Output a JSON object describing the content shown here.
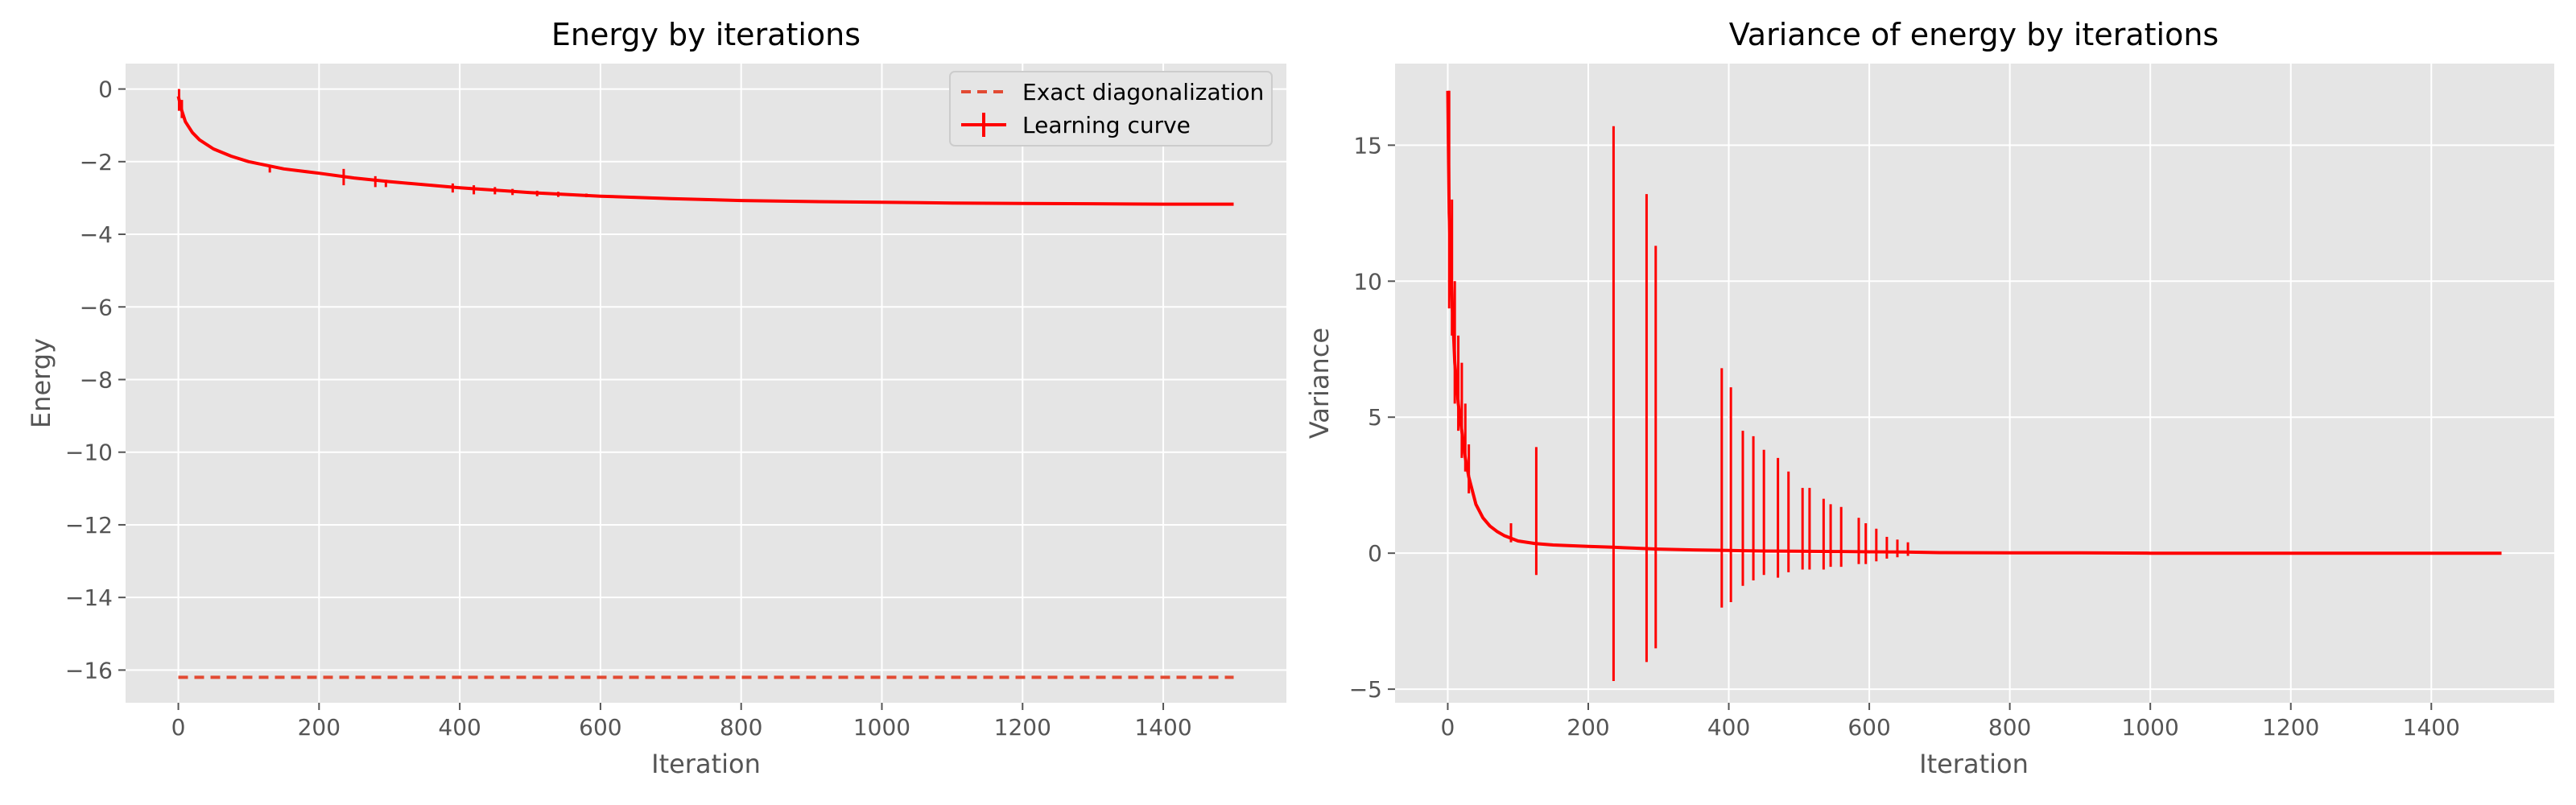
{
  "colors": {
    "plot_background": "#e5e5e5",
    "grid": "#ffffff",
    "learning_curve": "#ff0000",
    "exact_line": "#e24a33",
    "tick_label": "#555555"
  },
  "chart_data": [
    {
      "type": "line",
      "title": "Energy by iterations",
      "xlabel": "Iteration",
      "ylabel": "Energy",
      "xlim": [
        -75,
        1575
      ],
      "ylim": [
        -16.9,
        0.7
      ],
      "xticks": [
        0,
        200,
        400,
        600,
        800,
        1000,
        1200,
        1400
      ],
      "yticks": [
        0,
        -2,
        -4,
        -6,
        -8,
        -10,
        -12,
        -14,
        -16
      ],
      "xtick_labels": [
        "0",
        "200",
        "400",
        "600",
        "800",
        "1000",
        "1200",
        "1400"
      ],
      "ytick_labels": [
        "0",
        "−2",
        "−4",
        "−6",
        "−8",
        "−10",
        "−12",
        "−14",
        "−16"
      ],
      "grid": true,
      "legend": {
        "position": "top-right",
        "entries": [
          "Exact diagonalization",
          "Learning curve"
        ]
      },
      "series": [
        {
          "name": "Exact diagonalization",
          "style": "dashed",
          "x": [
            0,
            1500
          ],
          "y": [
            -16.2,
            -16.2
          ]
        },
        {
          "name": "Learning curve",
          "style": "solid-with-errorbars",
          "x": [
            0,
            5,
            10,
            20,
            30,
            50,
            75,
            100,
            150,
            200,
            250,
            300,
            400,
            500,
            600,
            700,
            800,
            900,
            1000,
            1100,
            1200,
            1300,
            1400,
            1500
          ],
          "y": [
            -0.2,
            -0.6,
            -0.9,
            -1.2,
            -1.4,
            -1.65,
            -1.85,
            -2.0,
            -2.2,
            -2.32,
            -2.45,
            -2.55,
            -2.72,
            -2.85,
            -2.95,
            -3.02,
            -3.07,
            -3.1,
            -3.12,
            -3.14,
            -3.15,
            -3.16,
            -3.17,
            -3.17
          ],
          "errorbars": [
            {
              "x": 1,
              "lo": -0.6,
              "hi": 0.0
            },
            {
              "x": 5,
              "lo": -0.8,
              "hi": -0.3
            },
            {
              "x": 130,
              "lo": -2.3,
              "hi": -2.1
            },
            {
              "x": 235,
              "lo": -2.65,
              "hi": -2.2
            },
            {
              "x": 280,
              "lo": -2.7,
              "hi": -2.4
            },
            {
              "x": 295,
              "lo": -2.7,
              "hi": -2.5
            },
            {
              "x": 390,
              "lo": -2.85,
              "hi": -2.6
            },
            {
              "x": 420,
              "lo": -2.9,
              "hi": -2.65
            },
            {
              "x": 450,
              "lo": -2.9,
              "hi": -2.7
            },
            {
              "x": 475,
              "lo": -2.92,
              "hi": -2.75
            },
            {
              "x": 510,
              "lo": -2.95,
              "hi": -2.8
            },
            {
              "x": 540,
              "lo": -2.97,
              "hi": -2.83
            },
            {
              "x": 580,
              "lo": -2.98,
              "hi": -2.88
            }
          ]
        }
      ]
    },
    {
      "type": "line",
      "title": "Variance of energy by iterations",
      "xlabel": "Iteration",
      "ylabel": "Variance",
      "xlim": [
        -75,
        1575
      ],
      "ylim": [
        -5.5,
        18
      ],
      "xticks": [
        0,
        200,
        400,
        600,
        800,
        1000,
        1200,
        1400
      ],
      "yticks": [
        -5,
        0,
        5,
        10,
        15
      ],
      "xtick_labels": [
        "0",
        "200",
        "400",
        "600",
        "800",
        "1000",
        "1200",
        "1400"
      ],
      "ytick_labels": [
        "−5",
        "0",
        "5",
        "10",
        "15"
      ],
      "grid": true,
      "series": [
        {
          "style": "solid",
          "x": [
            0,
            2,
            5,
            10,
            15,
            20,
            25,
            30,
            40,
            50,
            60,
            70,
            80,
            100,
            125,
            150,
            200,
            235,
            250,
            300,
            350,
            400,
            450,
            500,
            550,
            600,
            650,
            700,
            800,
            900,
            1000,
            1200,
            1400,
            1500
          ],
          "y": [
            17.0,
            12.5,
            10.0,
            7.0,
            5.5,
            4.5,
            3.5,
            2.8,
            1.8,
            1.3,
            1.0,
            0.8,
            0.65,
            0.45,
            0.35,
            0.3,
            0.25,
            0.22,
            0.2,
            0.15,
            0.12,
            0.1,
            0.08,
            0.07,
            0.06,
            0.05,
            0.04,
            0.02,
            0.01,
            0.01,
            0.0,
            0.0,
            0.0,
            0.0
          ]
        }
      ],
      "spikes": [
        {
          "x": 2,
          "lo": 9.0,
          "hi": 17.0
        },
        {
          "x": 6,
          "lo": 8.0,
          "hi": 13.0
        },
        {
          "x": 10,
          "lo": 5.5,
          "hi": 10.0
        },
        {
          "x": 15,
          "lo": 4.5,
          "hi": 8.0
        },
        {
          "x": 20,
          "lo": 3.5,
          "hi": 7.0
        },
        {
          "x": 25,
          "lo": 3.0,
          "hi": 5.5
        },
        {
          "x": 30,
          "lo": 2.2,
          "hi": 4.0
        },
        {
          "x": 90,
          "lo": 0.4,
          "hi": 1.1
        },
        {
          "x": 126,
          "lo": -0.8,
          "hi": 3.9
        },
        {
          "x": 236,
          "lo": -4.7,
          "hi": 15.7
        },
        {
          "x": 283,
          "lo": -4.0,
          "hi": 13.2
        },
        {
          "x": 296,
          "lo": -3.5,
          "hi": 11.3
        },
        {
          "x": 390,
          "lo": -2.0,
          "hi": 6.8
        },
        {
          "x": 403,
          "lo": -1.8,
          "hi": 6.1
        },
        {
          "x": 420,
          "lo": -1.2,
          "hi": 4.5
        },
        {
          "x": 435,
          "lo": -1.0,
          "hi": 4.3
        },
        {
          "x": 450,
          "lo": -0.8,
          "hi": 3.8
        },
        {
          "x": 470,
          "lo": -0.9,
          "hi": 3.5
        },
        {
          "x": 485,
          "lo": -0.7,
          "hi": 3.0
        },
        {
          "x": 505,
          "lo": -0.6,
          "hi": 2.4
        },
        {
          "x": 515,
          "lo": -0.6,
          "hi": 2.4
        },
        {
          "x": 535,
          "lo": -0.6,
          "hi": 2.0
        },
        {
          "x": 545,
          "lo": -0.5,
          "hi": 1.8
        },
        {
          "x": 560,
          "lo": -0.5,
          "hi": 1.7
        },
        {
          "x": 585,
          "lo": -0.4,
          "hi": 1.3
        },
        {
          "x": 595,
          "lo": -0.4,
          "hi": 1.1
        },
        {
          "x": 610,
          "lo": -0.3,
          "hi": 0.9
        },
        {
          "x": 625,
          "lo": -0.2,
          "hi": 0.6
        },
        {
          "x": 640,
          "lo": -0.15,
          "hi": 0.5
        },
        {
          "x": 655,
          "lo": -0.1,
          "hi": 0.4
        }
      ]
    }
  ]
}
